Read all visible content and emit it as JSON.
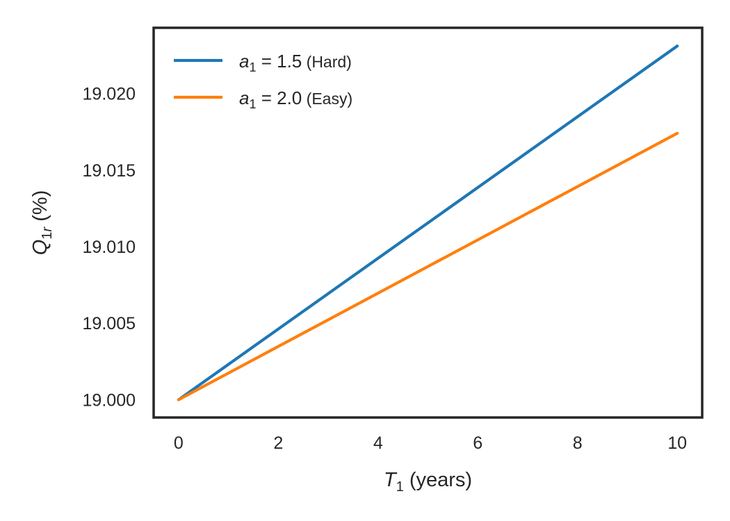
{
  "chart_data": {
    "type": "line",
    "xlabel": {
      "italic": "T",
      "sub": "1",
      "rest": " (years)"
    },
    "ylabel": {
      "italic": "Q",
      "sub": "1r",
      "rest": " (%)"
    },
    "xlim": [
      -0.5,
      10.5
    ],
    "ylim": [
      18.99884,
      19.02429
    ],
    "xticks": [
      0,
      2,
      4,
      6,
      8,
      10
    ],
    "xtick_labels": [
      "0",
      "2",
      "4",
      "6",
      "8",
      "10"
    ],
    "yticks": [
      19.0,
      19.005,
      19.01,
      19.015,
      19.02
    ],
    "ytick_labels": [
      "19.000",
      "19.005",
      "19.010",
      "19.015",
      "19.020"
    ],
    "grid": false,
    "legend_position": "top-left",
    "series": [
      {
        "legend": {
          "italic": "a",
          "sub": "1",
          "eq": " = 1.5",
          "paren": " (Hard)"
        },
        "color": "#1f77b4",
        "x": [
          0,
          10
        ],
        "y": [
          19.0,
          19.0231
        ]
      },
      {
        "legend": {
          "italic": "a",
          "sub": "1",
          "eq": " = 2.0",
          "paren": " (Easy)"
        },
        "color": "#ff7f0e",
        "x": [
          0,
          10
        ],
        "y": [
          19.0,
          19.0174
        ]
      }
    ]
  }
}
